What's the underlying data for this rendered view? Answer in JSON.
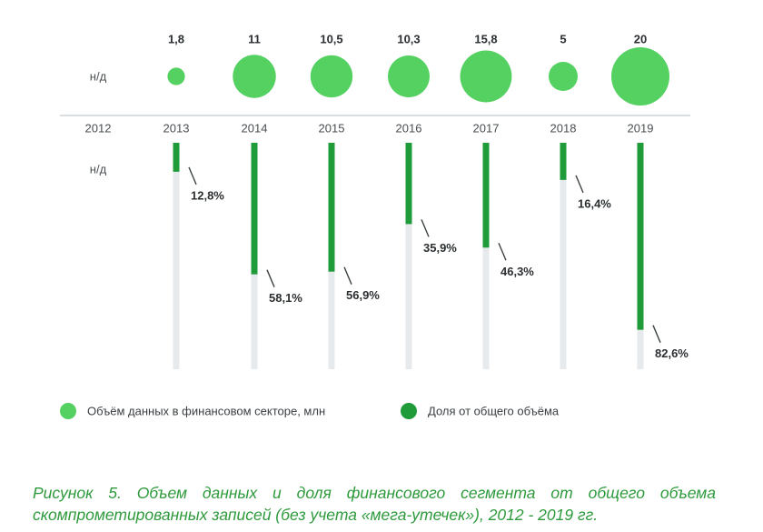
{
  "chart_data": {
    "type": "bubble-bar",
    "years": [
      "2012",
      "2013",
      "2014",
      "2015",
      "2016",
      "2017",
      "2018",
      "2019"
    ],
    "na_label": "н/д",
    "volume": {
      "name": "Объём данных в финансовом секторе, млн",
      "color": "#55d162",
      "values": [
        null,
        1.8,
        11,
        10.5,
        10.3,
        15.8,
        5,
        20
      ],
      "labels": [
        "н/д",
        "1,8",
        "11",
        "10,5",
        "10,3",
        "15,8",
        "5",
        "20"
      ]
    },
    "share": {
      "name": "Доля от общего объёма",
      "color": "#1f9b3a",
      "track_color": "#e7eaec",
      "values": [
        null,
        12.8,
        58.1,
        56.9,
        35.9,
        46.3,
        16.4,
        82.6
      ],
      "labels": [
        "н/д",
        "12,8%",
        "58,1%",
        "56,9%",
        "35,9%",
        "46,3%",
        "16,4%",
        "82,6%"
      ]
    }
  },
  "caption": {
    "line1": "Рисунок 5. Объем данных и доля финансового сегмента от общего объема",
    "line2": "скомпрометированных записей (без учета «мега-утечек»), 2012 - 2019 гг."
  }
}
